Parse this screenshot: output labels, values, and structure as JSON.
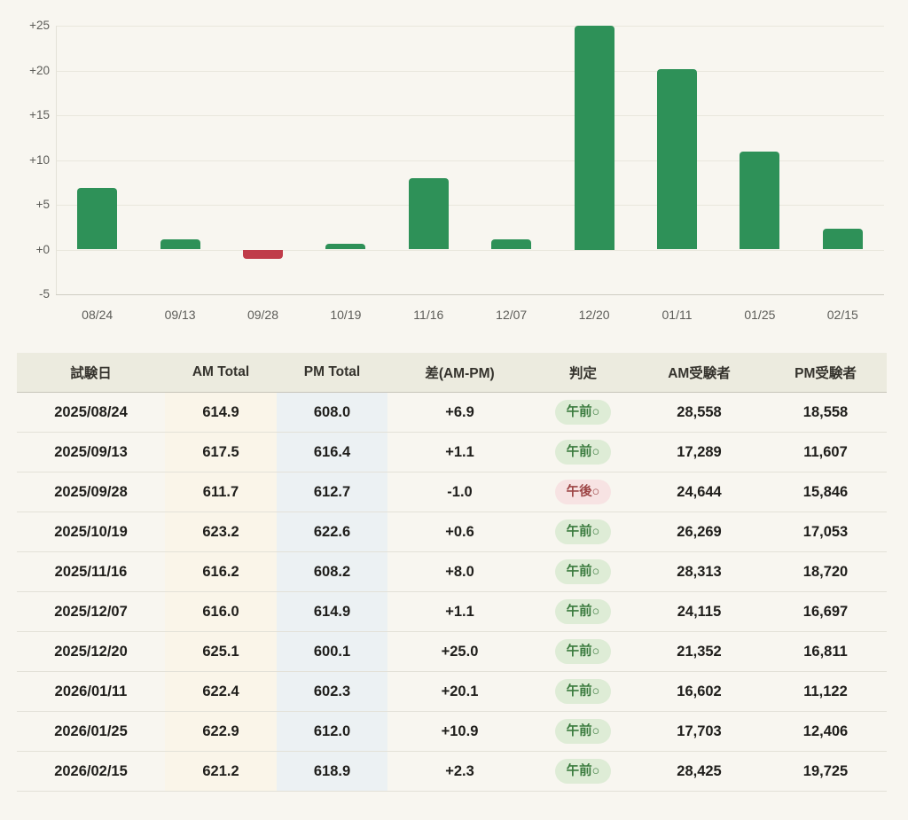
{
  "chart_data": {
    "type": "bar",
    "title": "",
    "xlabel": "",
    "ylabel": "",
    "categories": [
      "08/24",
      "09/13",
      "09/28",
      "10/19",
      "11/16",
      "12/07",
      "12/20",
      "01/11",
      "01/25",
      "02/15"
    ],
    "values": [
      6.9,
      1.1,
      -1.0,
      0.6,
      8.0,
      1.1,
      25.0,
      20.1,
      10.9,
      2.3
    ],
    "ylim": [
      -5,
      25
    ],
    "yticks": [
      "+25",
      "+20",
      "+15",
      "+10",
      "+5",
      "+0",
      "-5"
    ],
    "ytick_values": [
      25,
      20,
      15,
      10,
      5,
      0,
      -5
    ],
    "grid": true,
    "legend": "none",
    "positive_color": "#2e9158",
    "negative_color": "#c03c49"
  },
  "table": {
    "headers": [
      "試験日",
      "AM Total",
      "PM Total",
      "差(AM-PM)",
      "判定",
      "AM受験者",
      "PM受験者"
    ],
    "rows": [
      {
        "date": "2025/08/24",
        "am_total": "614.9",
        "pm_total": "608.0",
        "diff": "+6.9",
        "judge": "午前○",
        "judge_type": "green",
        "am_count": "28,558",
        "pm_count": "18,558"
      },
      {
        "date": "2025/09/13",
        "am_total": "617.5",
        "pm_total": "616.4",
        "diff": "+1.1",
        "judge": "午前○",
        "judge_type": "green",
        "am_count": "17,289",
        "pm_count": "11,607"
      },
      {
        "date": "2025/09/28",
        "am_total": "611.7",
        "pm_total": "612.7",
        "diff": "-1.0",
        "judge": "午後○",
        "judge_type": "red",
        "am_count": "24,644",
        "pm_count": "15,846"
      },
      {
        "date": "2025/10/19",
        "am_total": "623.2",
        "pm_total": "622.6",
        "diff": "+0.6",
        "judge": "午前○",
        "judge_type": "green",
        "am_count": "26,269",
        "pm_count": "17,053"
      },
      {
        "date": "2025/11/16",
        "am_total": "616.2",
        "pm_total": "608.2",
        "diff": "+8.0",
        "judge": "午前○",
        "judge_type": "green",
        "am_count": "28,313",
        "pm_count": "18,720"
      },
      {
        "date": "2025/12/07",
        "am_total": "616.0",
        "pm_total": "614.9",
        "diff": "+1.1",
        "judge": "午前○",
        "judge_type": "green",
        "am_count": "24,115",
        "pm_count": "16,697"
      },
      {
        "date": "2025/12/20",
        "am_total": "625.1",
        "pm_total": "600.1",
        "diff": "+25.0",
        "judge": "午前○",
        "judge_type": "green",
        "am_count": "21,352",
        "pm_count": "16,811"
      },
      {
        "date": "2026/01/11",
        "am_total": "622.4",
        "pm_total": "602.3",
        "diff": "+20.1",
        "judge": "午前○",
        "judge_type": "green",
        "am_count": "16,602",
        "pm_count": "11,122"
      },
      {
        "date": "2026/01/25",
        "am_total": "622.9",
        "pm_total": "612.0",
        "diff": "+10.9",
        "judge": "午前○",
        "judge_type": "green",
        "am_count": "17,703",
        "pm_count": "12,406"
      },
      {
        "date": "2026/02/15",
        "am_total": "621.2",
        "pm_total": "618.9",
        "diff": "+2.3",
        "judge": "午前○",
        "judge_type": "green",
        "am_count": "28,425",
        "pm_count": "19,725"
      }
    ]
  },
  "colors": {
    "page_background": "#f8f6f0",
    "header_background": "#ecebdf",
    "am_column_tint": "#faf5e9",
    "pm_column_tint": "#ecf1f3",
    "badge_green_bg": "#deecd6",
    "badge_green_text": "#3a7b3e",
    "badge_red_bg": "#f7e3e3",
    "badge_red_text": "#9d4646",
    "bar_positive": "#2e9158",
    "bar_negative": "#c03c49"
  }
}
